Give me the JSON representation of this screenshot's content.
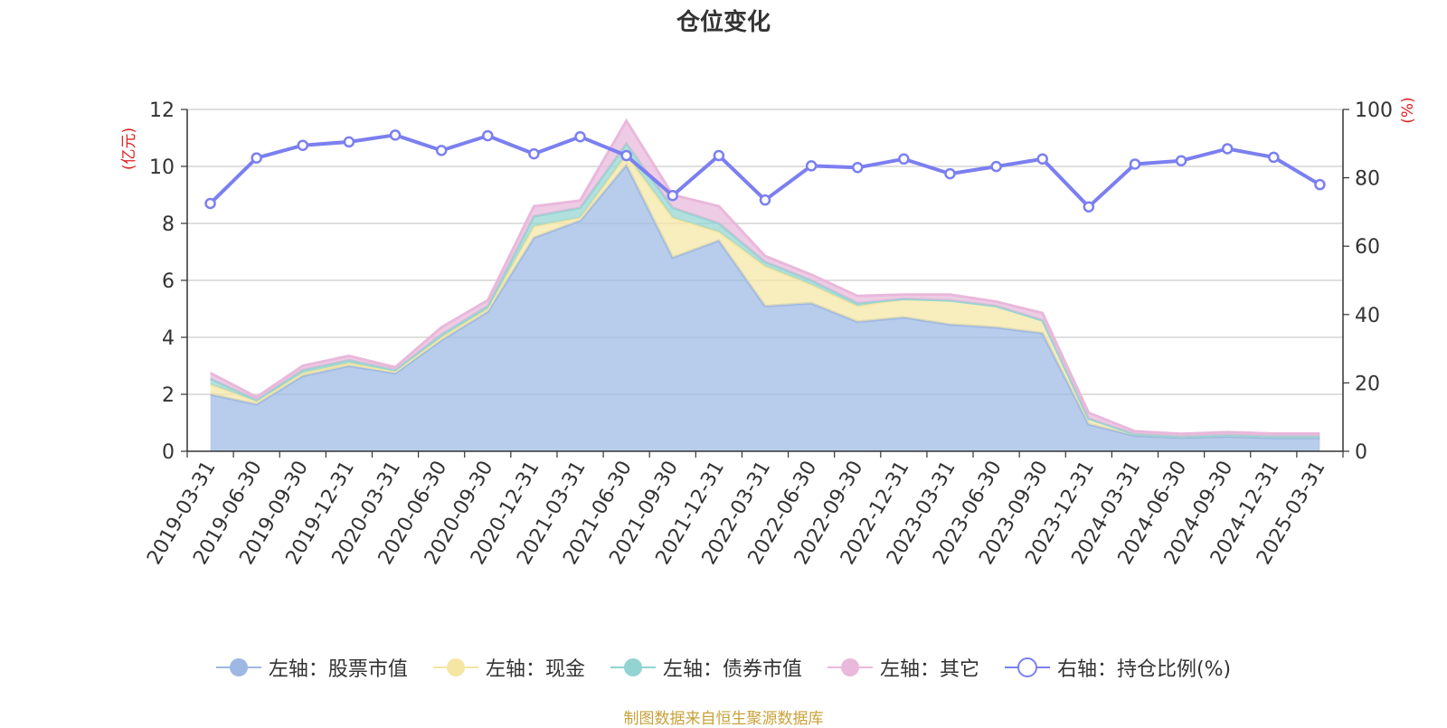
{
  "chart_data": {
    "type": "area",
    "title": "仓位变化",
    "categories": [
      "2019-03-31",
      "2019-06-30",
      "2019-09-30",
      "2019-12-31",
      "2020-03-31",
      "2020-06-30",
      "2020-09-30",
      "2020-12-31",
      "2021-03-31",
      "2021-06-30",
      "2021-09-30",
      "2021-12-31",
      "2022-03-31",
      "2022-06-30",
      "2022-09-30",
      "2022-12-31",
      "2023-03-31",
      "2023-06-30",
      "2023-09-30",
      "2023-12-31",
      "2024-03-31",
      "2024-06-30",
      "2024-09-30",
      "2024-12-31",
      "2025-03-31"
    ],
    "y_left": {
      "label": "(亿元)",
      "min": 0,
      "max": 12,
      "ticks": [
        0,
        2,
        4,
        6,
        8,
        10,
        12
      ]
    },
    "y_right": {
      "label": "(%)",
      "min": 0,
      "max": 100,
      "ticks": [
        0,
        20,
        40,
        60,
        80,
        100
      ]
    },
    "grid": true,
    "legend_position": "bottom",
    "series": [
      {
        "name": "左轴：股票市值",
        "axis": "left",
        "stacked": true,
        "color": "#9db8e3",
        "values": [
          2.0,
          1.65,
          2.65,
          3.0,
          2.75,
          3.9,
          4.9,
          7.5,
          8.1,
          10.05,
          6.8,
          7.4,
          5.1,
          5.2,
          4.55,
          4.7,
          4.45,
          4.35,
          4.15,
          0.95,
          0.55,
          0.48,
          0.52,
          0.47,
          0.47
        ]
      },
      {
        "name": "左轴：现金",
        "axis": "left",
        "stacked": true,
        "color": "#f5e6a3",
        "values": [
          0.35,
          0.1,
          0.1,
          0.1,
          0.05,
          0.1,
          0.1,
          0.4,
          0.1,
          0.35,
          1.4,
          0.3,
          1.4,
          0.65,
          0.55,
          0.65,
          0.85,
          0.75,
          0.45,
          0.2,
          0.05,
          0.03,
          0.05,
          0.05,
          0.05
        ]
      },
      {
        "name": "左轴：债券市值",
        "axis": "left",
        "stacked": true,
        "color": "#93d4d2",
        "values": [
          0.2,
          0.05,
          0.1,
          0.1,
          0.05,
          0.1,
          0.1,
          0.35,
          0.35,
          0.4,
          0.35,
          0.3,
          0.15,
          0.15,
          0.1,
          0,
          0,
          0,
          0,
          0,
          0,
          0,
          0,
          0,
          0
        ]
      },
      {
        "name": "左轴：其它",
        "axis": "left",
        "stacked": true,
        "color": "#e9b8db",
        "values": [
          0.2,
          0.1,
          0.15,
          0.15,
          0.1,
          0.25,
          0.2,
          0.35,
          0.25,
          0.8,
          0.45,
          0.6,
          0.2,
          0.2,
          0.25,
          0.15,
          0.2,
          0.15,
          0.25,
          0.2,
          0.1,
          0.1,
          0.1,
          0.1,
          0.1
        ]
      },
      {
        "name": "右轴：持仓比例(%)",
        "axis": "right",
        "type": "line",
        "color": "#7b7ff0",
        "values": [
          72.5,
          85.8,
          89.5,
          90.5,
          92.5,
          88.0,
          92.3,
          87.0,
          92.0,
          86.5,
          74.8,
          86.5,
          73.5,
          83.5,
          83.0,
          85.5,
          81.2,
          83.3,
          85.5,
          71.5,
          84.0,
          85.0,
          88.5,
          86.0,
          78.0
        ]
      }
    ]
  },
  "footer": {
    "source_note": "制图数据来自恒生聚源数据库"
  }
}
